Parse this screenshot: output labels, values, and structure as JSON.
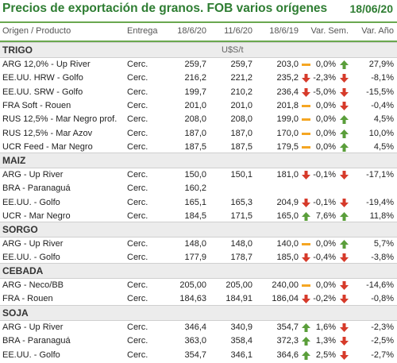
{
  "title": "Precios de exportación de granos. FOB varios orígenes",
  "date": "18/06/20",
  "headers": {
    "origen": "Origen / Producto",
    "entrega": "Entrega",
    "d1": "18/6/20",
    "d2": "11/6/20",
    "d3": "18/6/19",
    "vsem": "Var. Sem.",
    "vano": "Var. Año"
  },
  "unit": "U$S/t",
  "colors": {
    "title": "#2e7d32",
    "up": "#5a9e3a",
    "down": "#d63a2a",
    "flat": "#f5a623"
  },
  "sections": [
    {
      "name": "TRIGO",
      "rows": [
        {
          "producto": "ARG 12,0% - Up River",
          "entrega": "Cerc.",
          "p1": "259,7",
          "p2": "259,7",
          "p3": "203,0",
          "t3": "flat",
          "vsem": "0,0%",
          "ts": "up",
          "vano": "27,9%"
        },
        {
          "producto": "EE.UU. HRW - Golfo",
          "entrega": "Cerc.",
          "p1": "216,2",
          "p2": "221,2",
          "p3": "235,2",
          "t3": "down",
          "vsem": "-2,3%",
          "ts": "down",
          "vano": "-8,1%"
        },
        {
          "producto": "EE.UU. SRW - Golfo",
          "entrega": "Cerc.",
          "p1": "199,7",
          "p2": "210,2",
          "p3": "236,4",
          "t3": "down",
          "vsem": "-5,0%",
          "ts": "down",
          "vano": "-15,5%"
        },
        {
          "producto": "FRA Soft - Rouen",
          "entrega": "Cerc.",
          "p1": "201,0",
          "p2": "201,0",
          "p3": "201,8",
          "t3": "flat",
          "vsem": "0,0%",
          "ts": "down",
          "vano": "-0,4%"
        },
        {
          "producto": "RUS 12,5% - Mar Negro prof.",
          "entrega": "Cerc.",
          "p1": "208,0",
          "p2": "208,0",
          "p3": "199,0",
          "t3": "flat",
          "vsem": "0,0%",
          "ts": "up",
          "vano": "4,5%"
        },
        {
          "producto": "RUS 12,5% - Mar Azov",
          "entrega": "Cerc.",
          "p1": "187,0",
          "p2": "187,0",
          "p3": "170,0",
          "t3": "flat",
          "vsem": "0,0%",
          "ts": "up",
          "vano": "10,0%"
        },
        {
          "producto": "UCR Feed - Mar Negro",
          "entrega": "Cerc.",
          "p1": "187,5",
          "p2": "187,5",
          "p3": "179,5",
          "t3": "flat",
          "vsem": "0,0%",
          "ts": "up",
          "vano": "4,5%"
        }
      ]
    },
    {
      "name": "MAIZ",
      "rows": [
        {
          "producto": "ARG - Up River",
          "entrega": "Cerc.",
          "p1": "150,0",
          "p2": "150,1",
          "p3": "181,0",
          "t3": "down",
          "vsem": "-0,1%",
          "ts": "down",
          "vano": "-17,1%"
        },
        {
          "producto": "BRA - Paranaguá",
          "entrega": "Cerc.",
          "p1": "160,2",
          "p2": "",
          "p3": "",
          "t3": "",
          "vsem": "",
          "ts": "",
          "vano": ""
        },
        {
          "producto": "EE.UU. - Golfo",
          "entrega": "Cerc.",
          "p1": "165,1",
          "p2": "165,3",
          "p3": "204,9",
          "t3": "down",
          "vsem": "-0,1%",
          "ts": "down",
          "vano": "-19,4%"
        },
        {
          "producto": "UCR - Mar Negro",
          "entrega": "Cerc.",
          "p1": "184,5",
          "p2": "171,5",
          "p3": "165,0",
          "t3": "up",
          "vsem": "7,6%",
          "ts": "up",
          "vano": "11,8%"
        }
      ]
    },
    {
      "name": "SORGO",
      "rows": [
        {
          "producto": "ARG - Up River",
          "entrega": "Cerc.",
          "p1": "148,0",
          "p2": "148,0",
          "p3": "140,0",
          "t3": "flat",
          "vsem": "0,0%",
          "ts": "up",
          "vano": "5,7%"
        },
        {
          "producto": "EE.UU. - Golfo",
          "entrega": "Cerc.",
          "p1": "177,9",
          "p2": "178,7",
          "p3": "185,0",
          "t3": "down",
          "vsem": "-0,4%",
          "ts": "down",
          "vano": "-3,8%"
        }
      ]
    },
    {
      "name": "CEBADA",
      "rows": [
        {
          "producto": "ARG - Neco/BB",
          "entrega": "Cerc.",
          "p1": "205,00",
          "p2": "205,00",
          "p3": "240,00",
          "t3": "flat",
          "vsem": "0,0%",
          "ts": "down",
          "vano": "-14,6%"
        },
        {
          "producto": "FRA - Rouen",
          "entrega": "Cerc.",
          "p1": "184,63",
          "p2": "184,91",
          "p3": "186,04",
          "t3": "down",
          "vsem": "-0,2%",
          "ts": "down",
          "vano": "-0,8%"
        }
      ]
    },
    {
      "name": "SOJA",
      "rows": [
        {
          "producto": "ARG - Up River",
          "entrega": "Cerc.",
          "p1": "346,4",
          "p2": "340,9",
          "p3": "354,7",
          "t3": "up",
          "vsem": "1,6%",
          "ts": "down",
          "vano": "-2,3%"
        },
        {
          "producto": "BRA - Paranaguá",
          "entrega": "Cerc.",
          "p1": "363,0",
          "p2": "358,4",
          "p3": "372,3",
          "t3": "up",
          "vsem": "1,3%",
          "ts": "down",
          "vano": "-2,5%"
        },
        {
          "producto": "EE.UU. - Golfo",
          "entrega": "Cerc.",
          "p1": "354,7",
          "p2": "346,1",
          "p3": "364,6",
          "t3": "up",
          "vsem": "2,5%",
          "ts": "down",
          "vano": "-2,7%"
        }
      ]
    }
  ]
}
